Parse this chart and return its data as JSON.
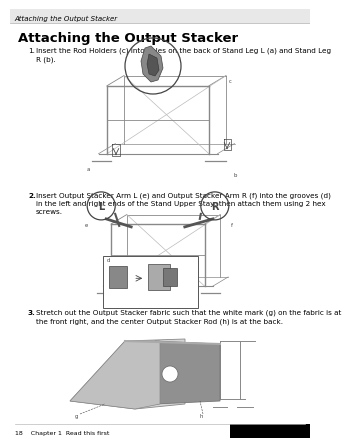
{
  "bg_color": "#ffffff",
  "page_bg": "#ffffff",
  "header_bg": "#e0e0e0",
  "header_text": "Attaching the Output Stacker",
  "header_fontsize": 5.0,
  "title_text": "Attaching the Output Stacker",
  "title_fontsize": 9.5,
  "footer_text": "18    Chapter 1  Read this first",
  "footer_fontsize": 4.5,
  "step1_text": "Insert the Rod Holders (c) into holes on the back of Stand Leg L (a) and Stand Leg\nR (b).",
  "step2_text": "Insert Output Stacker Arm L (e) and Output Stacker Arm R (f) into the grooves (d)\nin the left and right ends of the Stand Upper Stay, then attach them using 2 hex\nscrews.",
  "step3_text": "Stretch out the Output Stacker fabric such that the white mark (g) on the fabric is at\nthe front right, and the center Output Stacker Rod (h) is at the back.",
  "body_fontsize": 5.2,
  "label_fontsize": 3.8,
  "text_color": "#000000",
  "line_color": "#999999",
  "dark_gray": "#444444",
  "mid_gray": "#888888",
  "light_gray": "#cccccc"
}
